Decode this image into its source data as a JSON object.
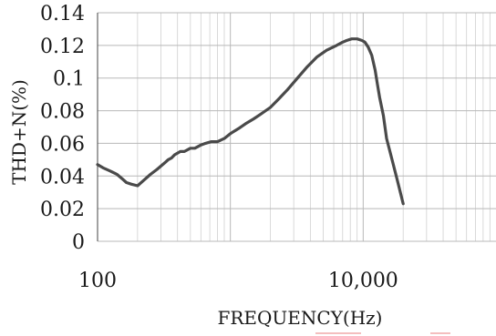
{
  "chart_data": {
    "type": "line",
    "title": "",
    "xlabel": "FREQUENCY(Hz)",
    "ylabel": "THD+N(%)",
    "x_scale": "log",
    "xlim": [
      100,
      100000
    ],
    "ylim": [
      0,
      0.14
    ],
    "x_ticks": [
      100,
      10000
    ],
    "x_tick_labels": [
      "100",
      "10,000"
    ],
    "y_ticks": [
      0,
      0.02,
      0.04,
      0.06,
      0.08,
      0.1,
      0.12,
      0.14
    ],
    "y_tick_labels": [
      "0",
      "0.02",
      "0.04",
      "0.06",
      "0.08",
      "0.1",
      "0.12",
      "0.14"
    ],
    "grid": true,
    "series": [
      {
        "x": [
          100,
          110,
          125,
          140,
          155,
          165,
          180,
          200,
          220,
          250,
          280,
          320,
          340,
          360,
          380,
          420,
          450,
          500,
          540,
          600,
          650,
          720,
          800,
          900,
          1000,
          1150,
          1300,
          1500,
          1700,
          2000,
          2300,
          2700,
          3200,
          3800,
          4500,
          5300,
          6300,
          7000,
          7500,
          8200,
          9000,
          9800,
          10300,
          10900,
          11600,
          12300,
          12800,
          13300,
          14200,
          15000,
          16500,
          18000,
          20000
        ],
        "y": [
          0.047,
          0.045,
          0.043,
          0.041,
          0.038,
          0.036,
          0.035,
          0.034,
          0.037,
          0.041,
          0.044,
          0.048,
          0.05,
          0.051,
          0.053,
          0.055,
          0.055,
          0.057,
          0.057,
          0.059,
          0.06,
          0.061,
          0.061,
          0.063,
          0.066,
          0.069,
          0.072,
          0.075,
          0.078,
          0.082,
          0.087,
          0.093,
          0.1,
          0.107,
          0.113,
          0.117,
          0.12,
          0.122,
          0.123,
          0.124,
          0.124,
          0.123,
          0.122,
          0.119,
          0.114,
          0.105,
          0.096,
          0.088,
          0.077,
          0.063,
          0.05,
          0.038,
          0.023
        ]
      }
    ]
  }
}
